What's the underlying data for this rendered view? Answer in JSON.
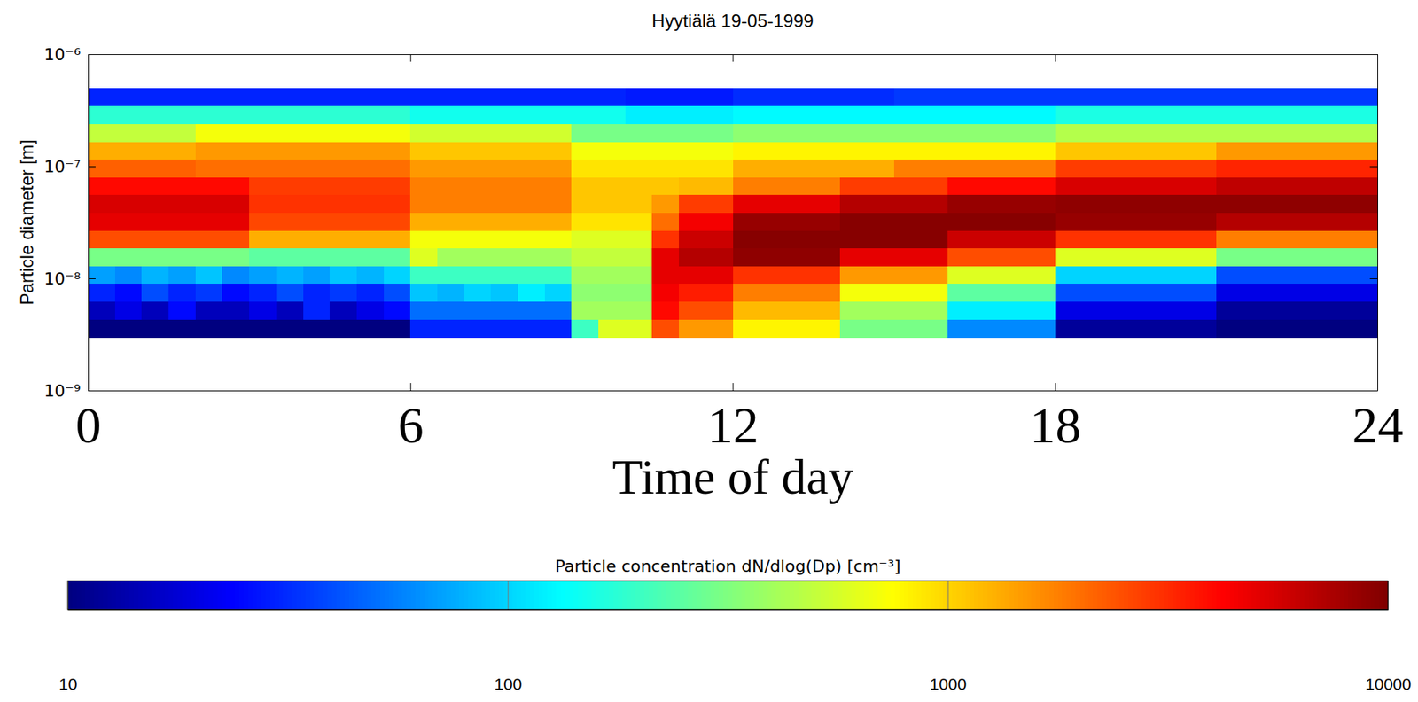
{
  "chart_data": {
    "type": "heatmap",
    "title": "Hyytiälä 19-05-1999",
    "x_label": "Time of day",
    "y_label": "Particle diameter [m]",
    "log": "y",
    "xlim": [
      0,
      24
    ],
    "xticks": [
      0,
      6,
      12,
      18,
      24
    ],
    "ylim": [
      1e-09,
      1e-06
    ],
    "yticks": [
      {
        "value": 1e-09,
        "label": "10⁻⁹"
      },
      {
        "value": 1e-08,
        "label": "10⁻⁸"
      },
      {
        "value": 1e-07,
        "label": "10⁻⁷"
      },
      {
        "value": 1e-06,
        "label": "10⁻⁶"
      }
    ],
    "x": [
      0.25,
      0.75,
      1.25,
      1.75,
      2.25,
      2.75,
      3.25,
      3.75,
      4.25,
      4.75,
      5.25,
      5.75,
      6.25,
      6.75,
      7.25,
      7.75,
      8.25,
      8.75,
      9.25,
      9.75,
      10.25,
      10.75,
      11.25,
      11.75,
      12.25,
      12.75,
      13.25,
      13.75,
      14.25,
      14.75,
      15.25,
      15.75,
      16.25,
      16.75,
      17.25,
      17.75,
      18.25,
      18.75,
      19.25,
      19.75,
      20.25,
      20.75,
      21.25,
      21.75,
      22.25,
      22.75,
      23.25,
      23.75
    ],
    "y": [
      3.6e-09,
      5.2e-09,
      7.5e-09,
      1.08e-08,
      1.55e-08,
      2.24e-08,
      3.23e-08,
      4.65e-08,
      6.7e-08,
      9.66e-08,
      1.39e-07,
      2e-07,
      2.89e-07,
      4.17e-07
    ],
    "values": [
      [
        10,
        10,
        10,
        10,
        10,
        10,
        10,
        10,
        10,
        10,
        10,
        10,
        30,
        30,
        30,
        30,
        30,
        30,
        200,
        600,
        600,
        2500,
        1500,
        1500,
        800,
        800,
        800,
        800,
        300,
        300,
        300,
        300,
        60,
        60,
        60,
        60,
        12,
        12,
        12,
        12,
        12,
        12,
        10,
        10,
        10,
        10,
        10,
        10
      ],
      [
        15,
        20,
        15,
        25,
        15,
        15,
        20,
        15,
        30,
        15,
        20,
        25,
        50,
        50,
        50,
        50,
        50,
        50,
        400,
        400,
        400,
        4000,
        2500,
        2500,
        1200,
        1200,
        1200,
        1200,
        400,
        400,
        400,
        400,
        120,
        120,
        120,
        120,
        20,
        20,
        20,
        20,
        20,
        20,
        12,
        12,
        12,
        12,
        12,
        12
      ],
      [
        30,
        25,
        40,
        30,
        35,
        25,
        30,
        40,
        30,
        35,
        30,
        40,
        90,
        80,
        100,
        90,
        120,
        100,
        350,
        350,
        350,
        4500,
        3500,
        3500,
        1800,
        1800,
        1800,
        1800,
        700,
        700,
        700,
        700,
        250,
        250,
        250,
        250,
        40,
        40,
        40,
        40,
        40,
        40,
        20,
        20,
        20,
        20,
        20,
        20
      ],
      [
        70,
        60,
        80,
        70,
        90,
        60,
        70,
        80,
        70,
        90,
        80,
        100,
        200,
        200,
        200,
        200,
        200,
        200,
        400,
        400,
        400,
        5000,
        5000,
        5000,
        3000,
        3000,
        3000,
        3000,
        1500,
        1500,
        1500,
        1500,
        600,
        600,
        600,
        600,
        100,
        100,
        100,
        100,
        100,
        100,
        40,
        40,
        40,
        40,
        40,
        40
      ],
      [
        300,
        300,
        300,
        300,
        300,
        300,
        250,
        250,
        250,
        250,
        250,
        250,
        600,
        400,
        400,
        400,
        400,
        400,
        500,
        500,
        500,
        5000,
        7000,
        7000,
        9000,
        9000,
        9000,
        9000,
        5000,
        5000,
        5000,
        5000,
        2500,
        2500,
        2500,
        2500,
        600,
        600,
        600,
        600,
        600,
        600,
        300,
        300,
        300,
        300,
        300,
        300
      ],
      [
        2500,
        2500,
        2500,
        2500,
        2500,
        2500,
        1300,
        1300,
        1300,
        1300,
        1300,
        1300,
        700,
        700,
        700,
        700,
        700,
        700,
        600,
        600,
        600,
        3000,
        6000,
        6000,
        9500,
        9500,
        9500,
        9500,
        9500,
        9500,
        9500,
        9500,
        6000,
        6000,
        6000,
        6000,
        3000,
        3000,
        3000,
        3000,
        3000,
        3000,
        1800,
        1800,
        1800,
        1800,
        1800,
        1800
      ],
      [
        5000,
        5000,
        5000,
        5000,
        5000,
        5000,
        2600,
        2600,
        2600,
        2600,
        2600,
        2600,
        1300,
        1300,
        1300,
        1300,
        1300,
        1300,
        900,
        900,
        900,
        2000,
        4500,
        4500,
        8500,
        8500,
        8500,
        8500,
        9500,
        9500,
        9500,
        9500,
        9500,
        9500,
        9500,
        9500,
        8500,
        8500,
        8500,
        8500,
        8500,
        8500,
        7000,
        7000,
        7000,
        7000,
        7000,
        7000
      ],
      [
        5500,
        5500,
        5500,
        5500,
        5500,
        5500,
        3000,
        3000,
        3000,
        3000,
        3000,
        3000,
        1800,
        1800,
        1800,
        1800,
        1800,
        1800,
        1100,
        1100,
        1100,
        1500,
        2800,
        2800,
        5000,
        5000,
        5000,
        5000,
        7000,
        7000,
        7000,
        7000,
        8500,
        8500,
        8500,
        8500,
        9000,
        9000,
        9000,
        9000,
        9000,
        9000,
        9000,
        9000,
        9000,
        9000,
        9000,
        9000
      ],
      [
        4000,
        4000,
        4000,
        4000,
        4000,
        4000,
        2800,
        2800,
        2800,
        2800,
        2800,
        2800,
        1800,
        1800,
        1800,
        1800,
        1800,
        1800,
        1100,
        1100,
        1100,
        1100,
        1200,
        1200,
        1800,
        1800,
        1800,
        1800,
        2800,
        2800,
        2800,
        2800,
        4000,
        4000,
        4000,
        4000,
        5500,
        5500,
        5500,
        5500,
        5500,
        5500,
        6500,
        6500,
        6500,
        6500,
        6500,
        6500
      ],
      [
        2200,
        2200,
        2200,
        2200,
        2000,
        2000,
        2000,
        2000,
        2000,
        2000,
        2000,
        2000,
        1500,
        1500,
        1500,
        1500,
        1500,
        1500,
        900,
        900,
        900,
        900,
        900,
        900,
        1300,
        1300,
        1300,
        1300,
        1300,
        1300,
        1800,
        1800,
        1800,
        1800,
        1800,
        1800,
        2800,
        2800,
        2800,
        2800,
        2800,
        2800,
        3300,
        3300,
        3300,
        3300,
        3300,
        3300
      ],
      [
        1300,
        1300,
        1300,
        1300,
        1500,
        1500,
        1500,
        1500,
        1500,
        1500,
        1500,
        1500,
        1100,
        1100,
        1100,
        1100,
        1100,
        1100,
        700,
        700,
        700,
        700,
        700,
        700,
        800,
        800,
        800,
        800,
        800,
        800,
        800,
        800,
        800,
        800,
        800,
        800,
        1100,
        1100,
        1100,
        1100,
        1100,
        1100,
        1500,
        1500,
        1500,
        1500,
        1500,
        1500
      ],
      [
        500,
        500,
        500,
        500,
        700,
        700,
        700,
        700,
        700,
        700,
        700,
        700,
        550,
        550,
        550,
        550,
        550,
        550,
        300,
        300,
        300,
        300,
        300,
        300,
        350,
        350,
        350,
        350,
        350,
        350,
        350,
        350,
        350,
        350,
        350,
        350,
        450,
        450,
        450,
        450,
        450,
        450,
        450,
        450,
        450,
        450,
        450,
        450
      ],
      [
        180,
        180,
        180,
        180,
        180,
        180,
        180,
        180,
        180,
        180,
        180,
        180,
        150,
        150,
        150,
        150,
        150,
        150,
        150,
        150,
        120,
        120,
        120,
        120,
        130,
        130,
        130,
        130,
        130,
        130,
        130,
        130,
        130,
        130,
        130,
        130,
        160,
        160,
        160,
        160,
        160,
        160,
        160,
        160,
        160,
        160,
        160,
        160
      ],
      [
        30,
        30,
        30,
        30,
        30,
        30,
        30,
        30,
        30,
        30,
        30,
        30,
        30,
        30,
        30,
        30,
        30,
        30,
        30,
        30,
        28,
        28,
        28,
        28,
        32,
        32,
        32,
        32,
        32,
        32,
        35,
        35,
        35,
        35,
        35,
        35,
        35,
        35,
        35,
        35,
        35,
        35,
        35,
        35,
        35,
        35,
        35,
        35
      ]
    ],
    "colorbar": {
      "title": "Particle concentration dN/dlog(Dp) [cm⁻³]",
      "range": [
        10,
        10000
      ],
      "ticks": [
        10,
        100,
        1000,
        10000
      ],
      "log": true
    }
  }
}
